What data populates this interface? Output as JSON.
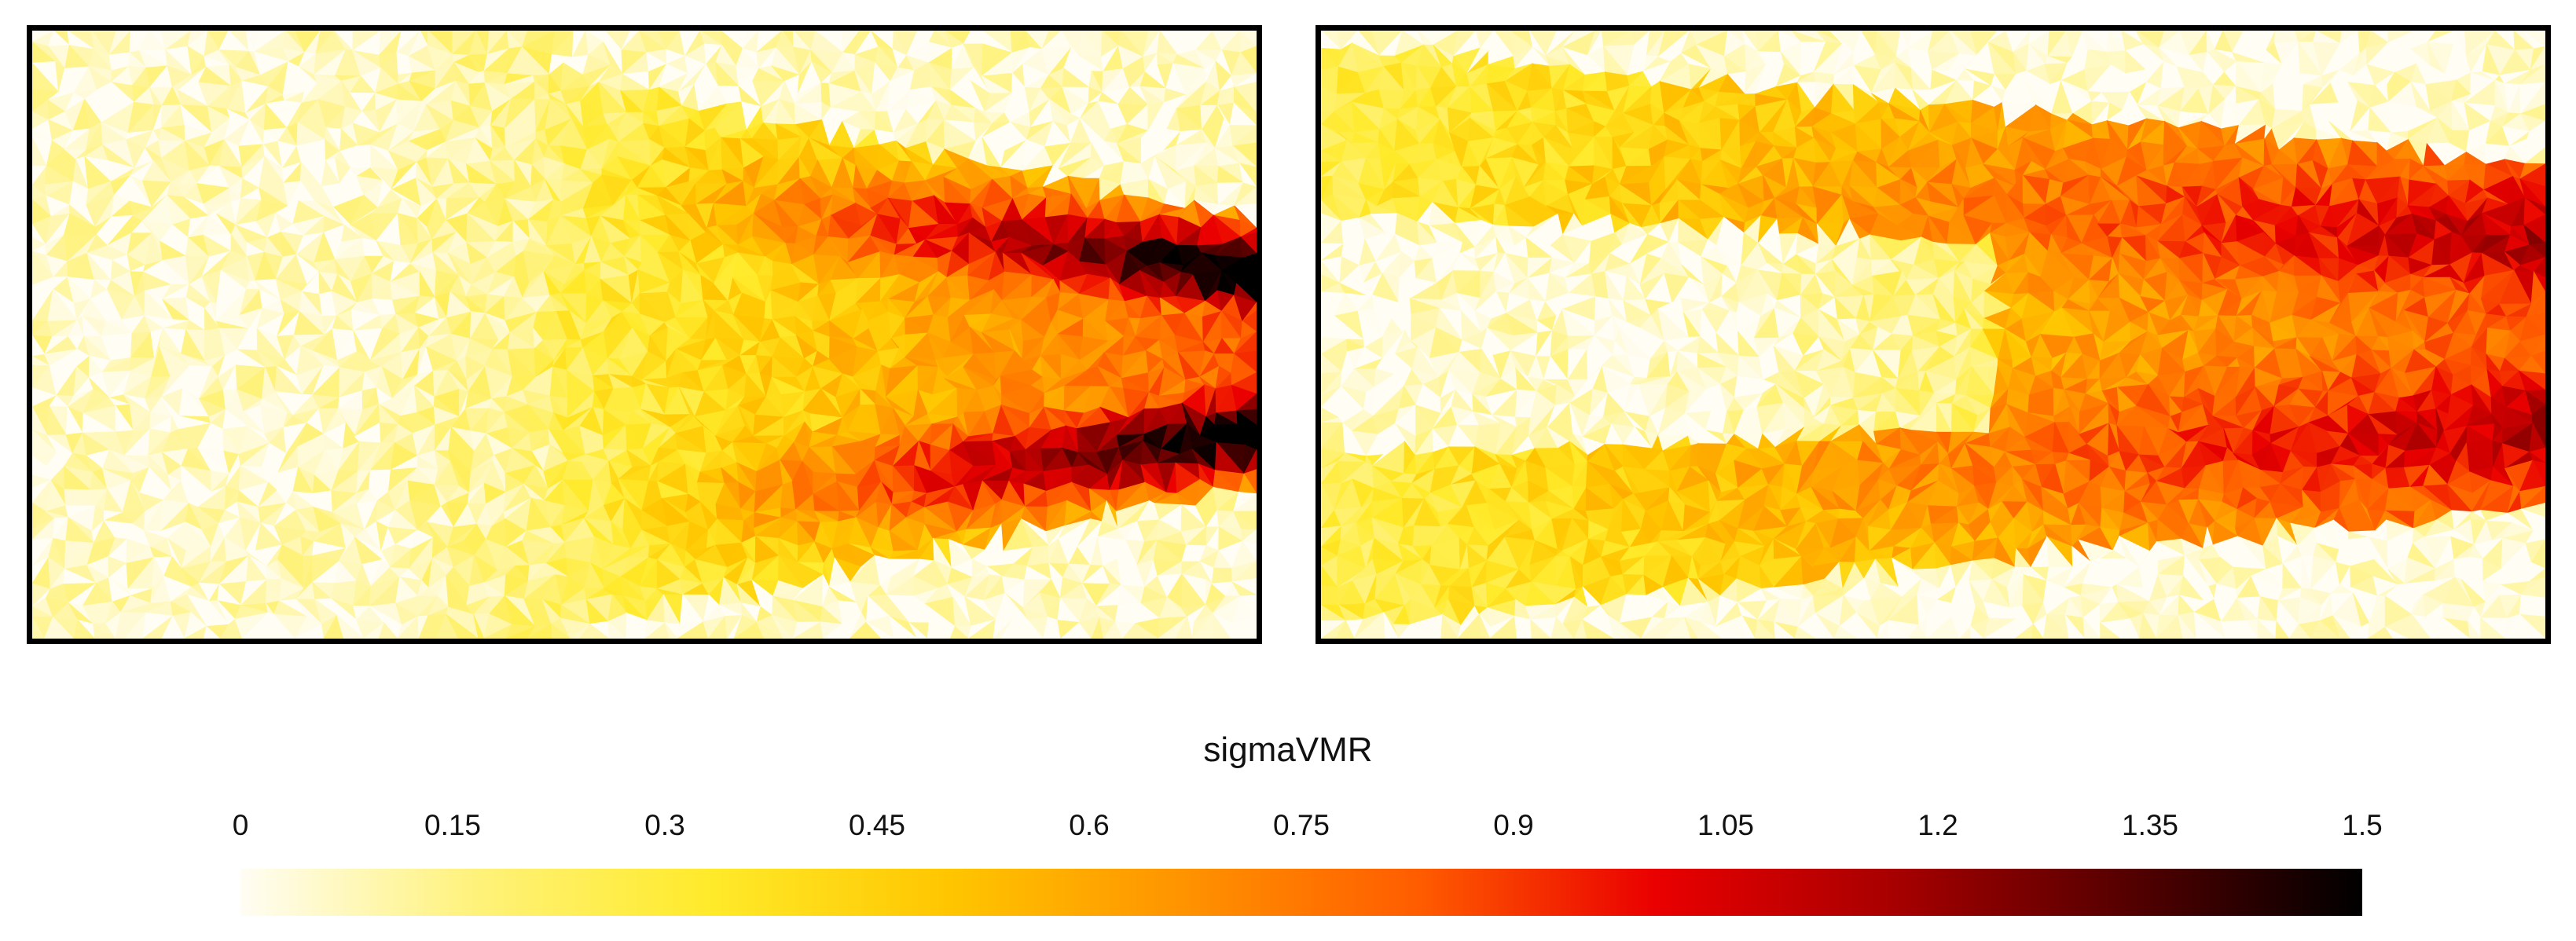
{
  "chart_data": {
    "type": "heatmap",
    "colorbar": {
      "title": "sigmaVMR",
      "min": 0,
      "max": 1.5,
      "ticks": [
        "0",
        "0.15",
        "0.3",
        "0.45",
        "0.6",
        "0.75",
        "0.9",
        "1.05",
        "1.2",
        "1.35",
        "1.5"
      ],
      "colormap": [
        "#fffdf4",
        "#fff27a",
        "#ffea2a",
        "#ffc600",
        "#ff9300",
        "#ff5c00",
        "#ea0000",
        "#a80000",
        "#550000",
        "#000000"
      ]
    },
    "panels": [
      {
        "name": "left",
        "description_only": true
      },
      {
        "name": "right",
        "description_only": true
      }
    ]
  }
}
